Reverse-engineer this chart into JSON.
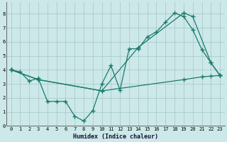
{
  "xlabel": "Humidex (Indice chaleur)",
  "bg_color": "#cce8e8",
  "grid_color": "#aacccc",
  "line_color": "#1a7a6e",
  "xlim": [
    -0.5,
    23.5
  ],
  "ylim": [
    0,
    8.8
  ],
  "xticks": [
    0,
    1,
    2,
    3,
    4,
    5,
    6,
    7,
    8,
    9,
    10,
    11,
    12,
    13,
    14,
    15,
    16,
    17,
    18,
    19,
    20,
    21,
    22,
    23
  ],
  "yticks": [
    0,
    1,
    2,
    3,
    4,
    5,
    6,
    7,
    8
  ],
  "line1_x": [
    0,
    1,
    2,
    3,
    4,
    5,
    6,
    7,
    8,
    9,
    10,
    11,
    12,
    13,
    14,
    15,
    16,
    17,
    18,
    19,
    20,
    21,
    22,
    23
  ],
  "line1_y": [
    4.0,
    3.85,
    3.2,
    3.4,
    1.75,
    1.75,
    1.75,
    0.7,
    0.35,
    1.1,
    3.0,
    4.3,
    2.55,
    5.5,
    5.5,
    6.35,
    6.7,
    7.4,
    8.05,
    7.8,
    6.85,
    5.45,
    4.5,
    3.6
  ],
  "line2_x": [
    0,
    3,
    10,
    14,
    19,
    20,
    22,
    23
  ],
  "line2_y": [
    4.0,
    3.3,
    2.5,
    5.6,
    8.05,
    7.8,
    4.5,
    3.6
  ],
  "line3_x": [
    0,
    3,
    10,
    19,
    21,
    22,
    23
  ],
  "line3_y": [
    4.0,
    3.3,
    2.5,
    3.3,
    3.5,
    3.55,
    3.6
  ]
}
